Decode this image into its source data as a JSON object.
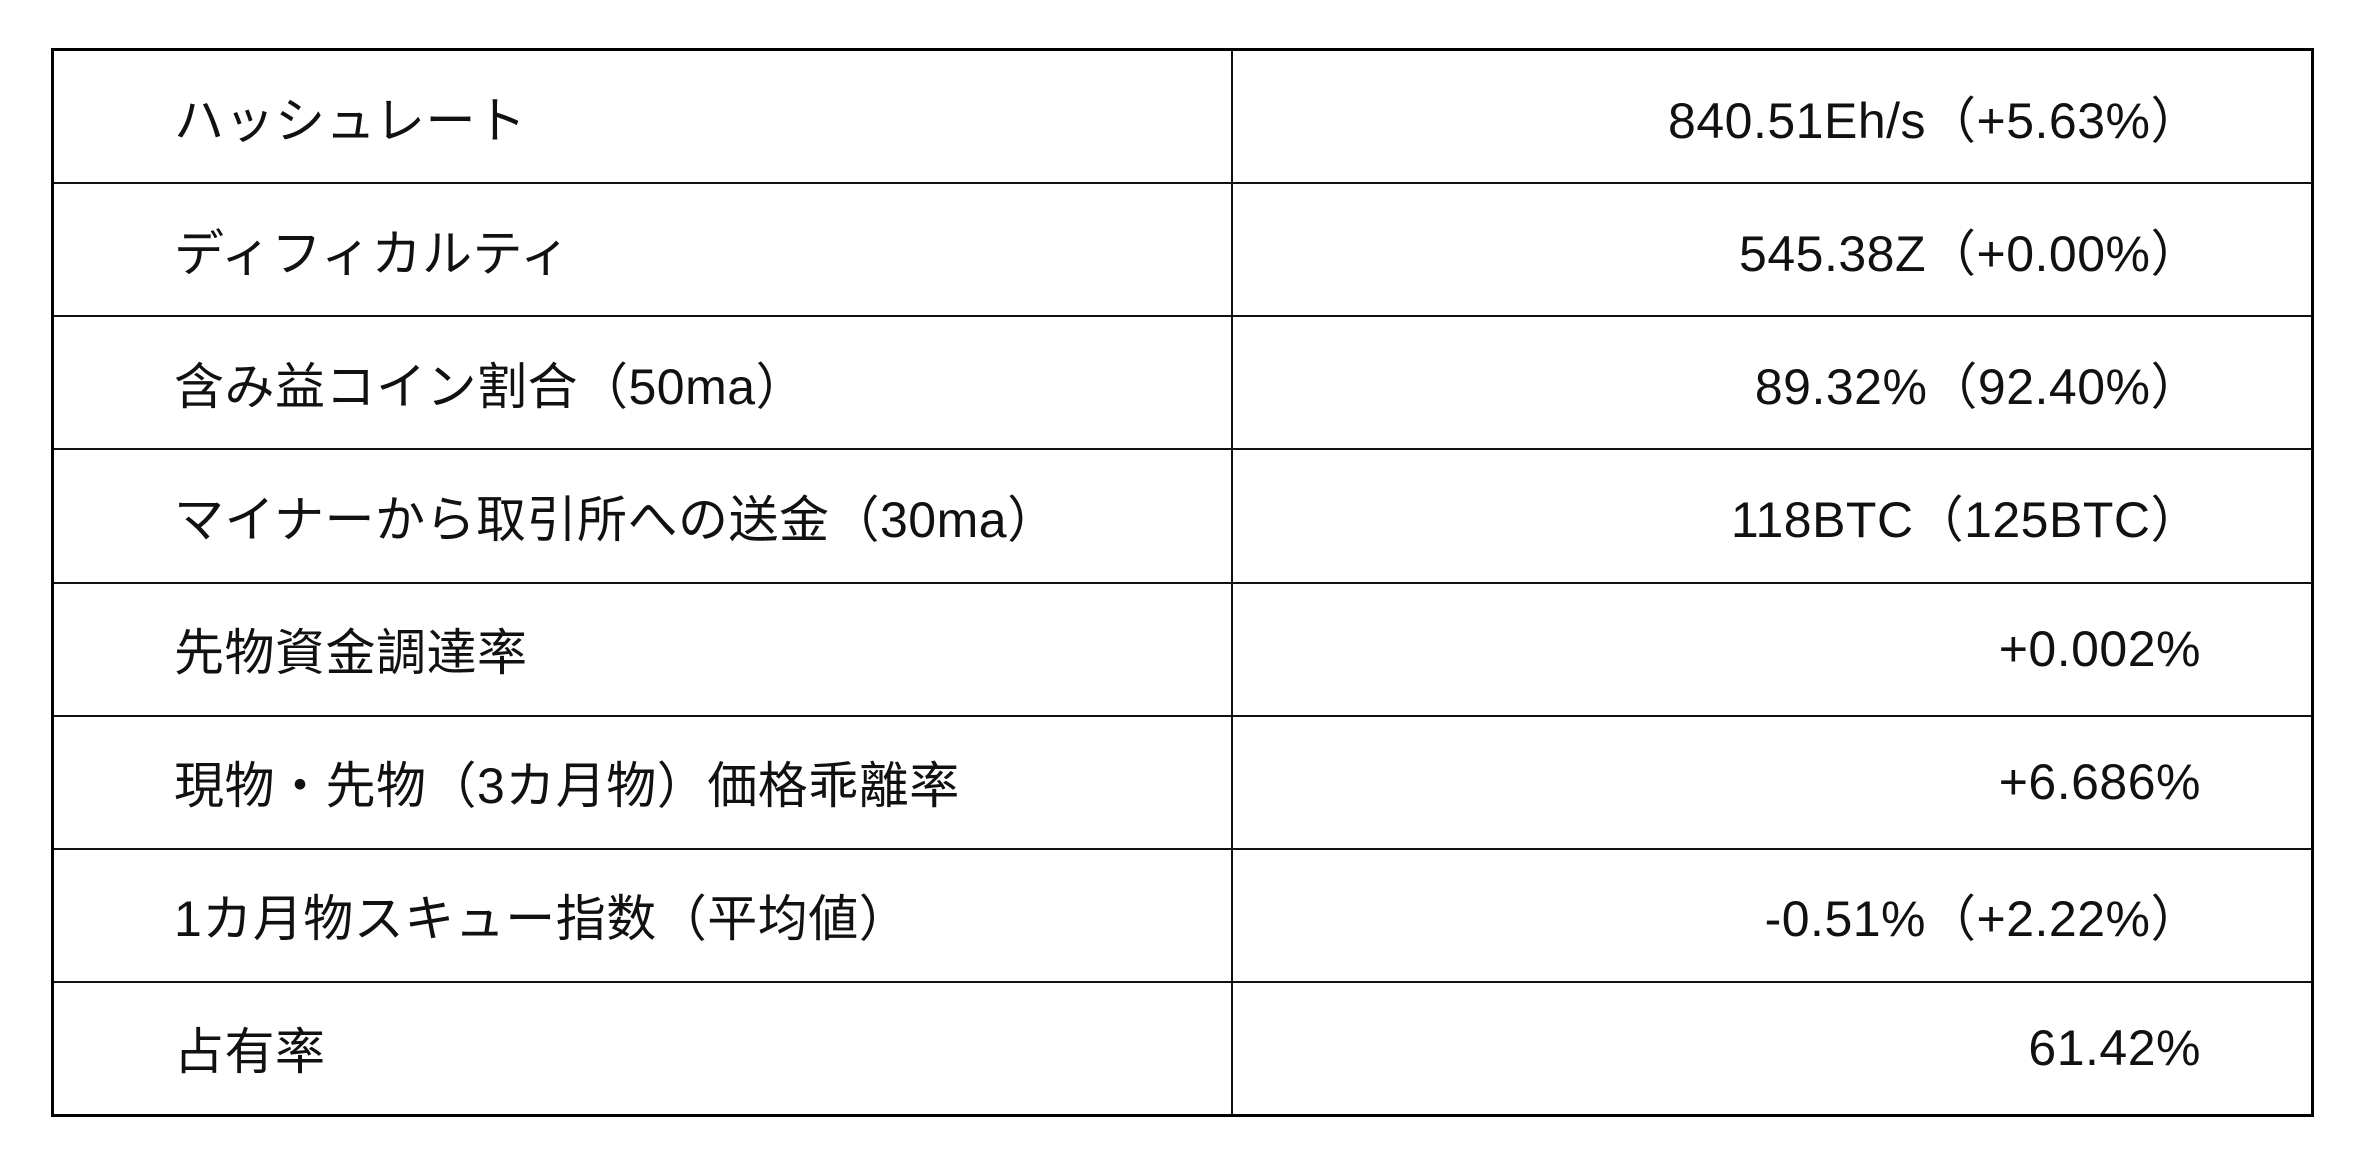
{
  "table": {
    "border_color": "#000000",
    "text_color": "#111111",
    "background_color": "#ffffff",
    "rows": [
      {
        "label": "ハッシュレート",
        "value": "840.51Eh/s（+5.63%）"
      },
      {
        "label": "ディフィカルティ",
        "value": "545.38Z（+0.00%）"
      },
      {
        "label": "含み益コイン割合（50ma）",
        "value": "89.32%（92.40%）"
      },
      {
        "label": "マイナーから取引所への送金（30ma）",
        "value": "118BTC（125BTC）"
      },
      {
        "label": "先物資金調達率",
        "value": "+0.002%"
      },
      {
        "label": "現物・先物（3カ月物）価格乖離率",
        "value": "+6.686%"
      },
      {
        "label": "1カ月物スキュー指数（平均値）",
        "value": "-0.51%（+2.22%）"
      },
      {
        "label": "占有率",
        "value": "61.42%"
      }
    ]
  }
}
